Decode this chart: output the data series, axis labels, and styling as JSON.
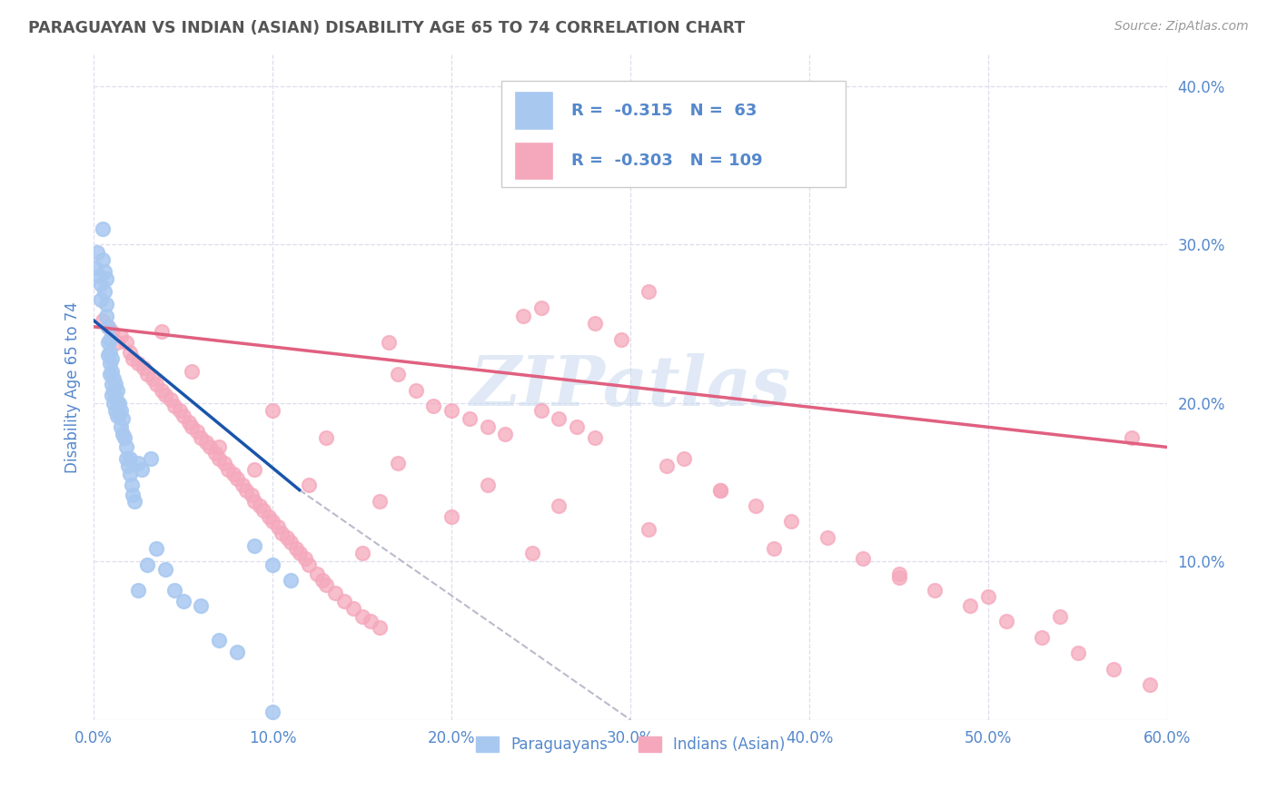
{
  "title": "PARAGUAYAN VS INDIAN (ASIAN) DISABILITY AGE 65 TO 74 CORRELATION CHART",
  "source": "Source: ZipAtlas.com",
  "ylabel_label": "Disability Age 65 to 74",
  "watermark": "ZIPatlas",
  "legend_paraguayan": "Paraguayans",
  "legend_indian": "Indians (Asian)",
  "r_paraguayan": -0.315,
  "n_paraguayan": 63,
  "r_indian": -0.303,
  "n_indian": 109,
  "blue_color": "#A8C8F0",
  "pink_color": "#F5A8BC",
  "blue_line_color": "#1A55AA",
  "pink_line_color": "#E06080",
  "dashed_line_color": "#BBBBCC",
  "tick_color": "#5588CC",
  "background_color": "#FFFFFF",
  "grid_color": "#DDDDEE",
  "xlim": [
    0.0,
    0.6
  ],
  "ylim": [
    0.0,
    0.42
  ],
  "par_x": [
    0.001,
    0.002,
    0.003,
    0.004,
    0.004,
    0.005,
    0.005,
    0.006,
    0.006,
    0.007,
    0.007,
    0.007,
    0.008,
    0.008,
    0.008,
    0.009,
    0.009,
    0.009,
    0.009,
    0.01,
    0.01,
    0.01,
    0.01,
    0.011,
    0.011,
    0.011,
    0.012,
    0.012,
    0.012,
    0.013,
    0.013,
    0.013,
    0.014,
    0.014,
    0.015,
    0.015,
    0.016,
    0.016,
    0.017,
    0.018,
    0.018,
    0.019,
    0.02,
    0.021,
    0.022,
    0.023,
    0.025,
    0.027,
    0.03,
    0.032,
    0.035,
    0.04,
    0.045,
    0.05,
    0.06,
    0.07,
    0.08,
    0.09,
    0.1,
    0.11,
    0.02,
    0.025,
    0.1
  ],
  "par_y": [
    0.285,
    0.295,
    0.28,
    0.275,
    0.265,
    0.31,
    0.29,
    0.283,
    0.27,
    0.278,
    0.262,
    0.255,
    0.248,
    0.238,
    0.23,
    0.24,
    0.232,
    0.225,
    0.218,
    0.228,
    0.22,
    0.212,
    0.205,
    0.215,
    0.208,
    0.2,
    0.212,
    0.204,
    0.195,
    0.208,
    0.2,
    0.192,
    0.2,
    0.193,
    0.195,
    0.185,
    0.19,
    0.18,
    0.178,
    0.172,
    0.165,
    0.16,
    0.155,
    0.148,
    0.142,
    0.138,
    0.162,
    0.158,
    0.098,
    0.165,
    0.108,
    0.095,
    0.082,
    0.075,
    0.072,
    0.05,
    0.043,
    0.11,
    0.005,
    0.088,
    0.165,
    0.082,
    0.098
  ],
  "ind_x": [
    0.005,
    0.008,
    0.01,
    0.013,
    0.015,
    0.018,
    0.02,
    0.022,
    0.025,
    0.028,
    0.03,
    0.033,
    0.035,
    0.038,
    0.04,
    0.043,
    0.045,
    0.048,
    0.05,
    0.053,
    0.055,
    0.058,
    0.06,
    0.063,
    0.065,
    0.068,
    0.07,
    0.073,
    0.075,
    0.078,
    0.08,
    0.083,
    0.085,
    0.088,
    0.09,
    0.093,
    0.095,
    0.098,
    0.1,
    0.103,
    0.105,
    0.108,
    0.11,
    0.113,
    0.115,
    0.118,
    0.12,
    0.125,
    0.128,
    0.13,
    0.135,
    0.14,
    0.145,
    0.15,
    0.155,
    0.16,
    0.165,
    0.17,
    0.18,
    0.19,
    0.2,
    0.21,
    0.22,
    0.23,
    0.24,
    0.25,
    0.26,
    0.27,
    0.28,
    0.295,
    0.31,
    0.33,
    0.35,
    0.37,
    0.39,
    0.41,
    0.43,
    0.45,
    0.47,
    0.49,
    0.51,
    0.53,
    0.55,
    0.57,
    0.59,
    0.25,
    0.32,
    0.15,
    0.28,
    0.35,
    0.038,
    0.055,
    0.1,
    0.13,
    0.17,
    0.22,
    0.26,
    0.31,
    0.38,
    0.45,
    0.5,
    0.54,
    0.58,
    0.07,
    0.09,
    0.12,
    0.16,
    0.2,
    0.245
  ],
  "ind_y": [
    0.252,
    0.248,
    0.245,
    0.238,
    0.242,
    0.238,
    0.232,
    0.228,
    0.225,
    0.222,
    0.218,
    0.215,
    0.212,
    0.208,
    0.205,
    0.202,
    0.198,
    0.195,
    0.192,
    0.188,
    0.185,
    0.182,
    0.178,
    0.175,
    0.172,
    0.168,
    0.165,
    0.162,
    0.158,
    0.155,
    0.152,
    0.148,
    0.145,
    0.142,
    0.138,
    0.135,
    0.132,
    0.128,
    0.125,
    0.122,
    0.118,
    0.115,
    0.112,
    0.108,
    0.105,
    0.102,
    0.098,
    0.092,
    0.088,
    0.085,
    0.08,
    0.075,
    0.07,
    0.065,
    0.062,
    0.058,
    0.238,
    0.218,
    0.208,
    0.198,
    0.195,
    0.19,
    0.185,
    0.18,
    0.255,
    0.26,
    0.19,
    0.185,
    0.178,
    0.24,
    0.27,
    0.165,
    0.145,
    0.135,
    0.125,
    0.115,
    0.102,
    0.09,
    0.082,
    0.072,
    0.062,
    0.052,
    0.042,
    0.032,
    0.022,
    0.195,
    0.16,
    0.105,
    0.25,
    0.145,
    0.245,
    0.22,
    0.195,
    0.178,
    0.162,
    0.148,
    0.135,
    0.12,
    0.108,
    0.092,
    0.078,
    0.065,
    0.178,
    0.172,
    0.158,
    0.148,
    0.138,
    0.128,
    0.105
  ],
  "blue_line_x": [
    0.0,
    0.115
  ],
  "blue_line_y": [
    0.252,
    0.145
  ],
  "dash_line_x": [
    0.115,
    0.3
  ],
  "dash_line_y": [
    0.145,
    0.0
  ],
  "pink_line_x": [
    0.0,
    0.6
  ],
  "pink_line_y": [
    0.248,
    0.172
  ]
}
